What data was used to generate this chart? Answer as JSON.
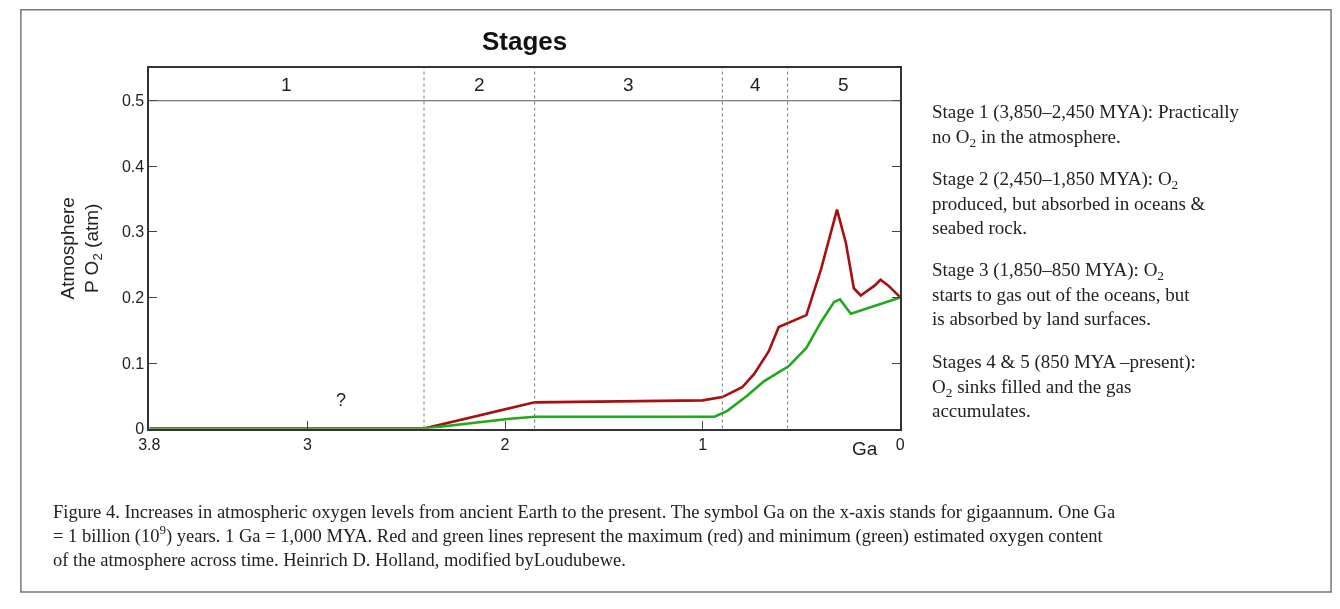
{
  "chart_data": {
    "type": "line",
    "title": "Stages",
    "xlabel": "Ga",
    "ylabel": "Atmosphere\nP O$_{2}$ (atm)",
    "xlim": [
      3.8,
      0
    ],
    "xticks": [
      3.8,
      3,
      2,
      1,
      0
    ],
    "ylim": [
      0,
      0.55
    ],
    "yticks": [
      0,
      0.1,
      0.2,
      0.3,
      0.4,
      0.5
    ],
    "series": [
      {
        "color": "#a80f0f",
        "x": [
          3.8,
          2.41,
          1.85,
          1.0,
          0.9,
          0.8,
          0.74,
          0.665,
          0.615,
          0.475,
          0.4,
          0.32,
          0.275,
          0.235,
          0.2,
          0.13,
          0.1,
          0.06,
          0
        ],
        "values": [
          0,
          0,
          0.04,
          0.043,
          0.048,
          0.063,
          0.083,
          0.118,
          0.155,
          0.173,
          0.244,
          0.334,
          0.283,
          0.214,
          0.203,
          0.218,
          0.227,
          0.218,
          0.2
        ]
      },
      {
        "color": "#22a81c",
        "x": [
          3.8,
          2.41,
          1.975,
          1.85,
          0.94,
          0.875,
          0.775,
          0.69,
          0.61,
          0.565,
          0.475,
          0.4,
          0.335,
          0.305,
          0.25,
          0
        ],
        "values": [
          0,
          0,
          0.015,
          0.018,
          0.018,
          0.027,
          0.05,
          0.072,
          0.087,
          0.095,
          0.123,
          0.163,
          0.193,
          0.197,
          0.175,
          0.2
        ]
      }
    ],
    "ref_lines": [
      {
        "axis": "x",
        "value": 2.41,
        "line_style": "dotted",
        "color": "#777777"
      },
      {
        "axis": "x",
        "value": 1.85,
        "line_style": "dotted",
        "color": "#777777"
      },
      {
        "axis": "x",
        "value": 0.9,
        "line_style": "dotted",
        "color": "#777777"
      },
      {
        "axis": "x",
        "value": 0.57,
        "line_style": "dotted",
        "color": "#777777"
      },
      {
        "axis": "y",
        "value": 0.5,
        "line_style": "solid",
        "color": "#555555"
      }
    ],
    "annotations": [
      "1",
      "2",
      "3",
      "4",
      "5",
      "?",
      "Stage 1 (3,850–2,450 MYA): Practically no O$_{2}$ in the atmosphere.",
      "Stage 2 (2,450–1,850 MYA): O$_{2}$ produced, but absorbed in oceans & seabed rock.",
      "Stage 3 (1,850–850 MYA): O$_{2}$ starts to gas out of the oceans, but is absorbed by land surfaces.",
      "Stages 4 & 5 (850 MYA –present): O$_{2}$ sinks filled and the gas accumulates.",
      "Figure 4. Increases in atmospheric oxygen levels from ancient Earth to the present. The symbol Ga on the x-axis stands for gigaannum. One Ga = 1 billion (10$^{9}$) years. 1 Ga = 1,000 MYA. Red and green lines represent the maximum (red) and minimum (green) estimated oxygen content of the atmosphere across time. Heinrich D. Holland, modified byLoudubewe."
    ]
  }
}
